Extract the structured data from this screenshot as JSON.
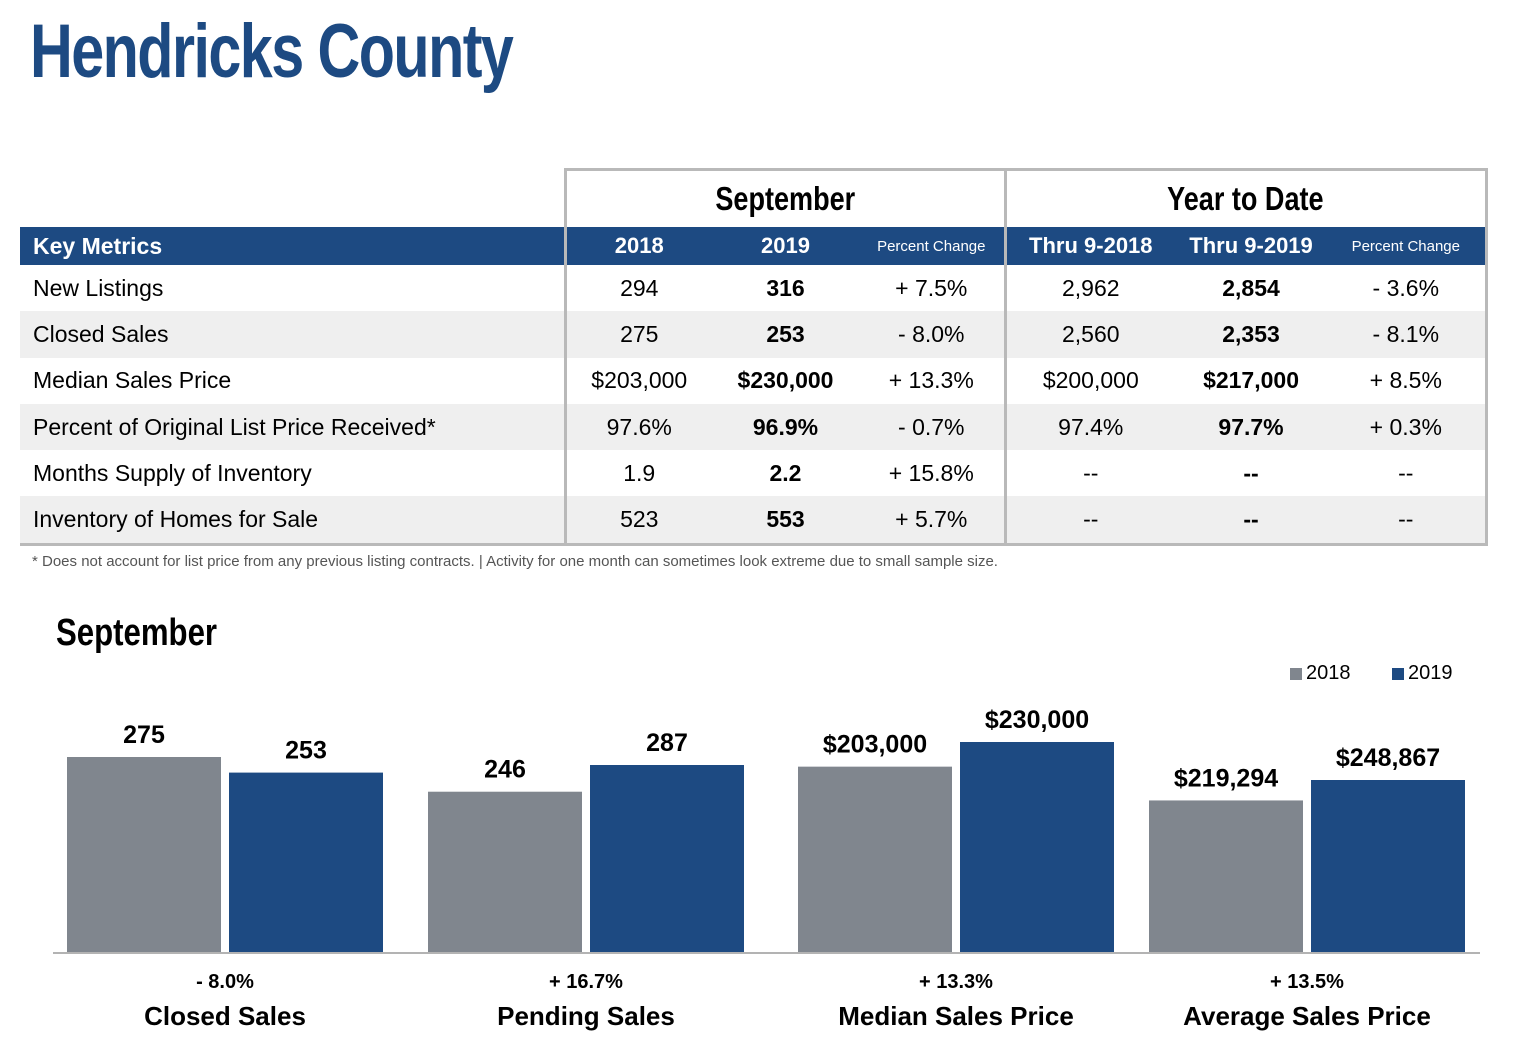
{
  "header": {
    "title": "Hendricks County"
  },
  "table": {
    "group_headers": [
      "September",
      "Year to Date"
    ],
    "columns": [
      "Key Metrics",
      "2018",
      "2019",
      "Percent Change",
      "Thru 9-2018",
      "Thru 9-2019",
      "Percent Change"
    ],
    "rows": [
      [
        "New Listings",
        "294",
        "316",
        "+ 7.5%",
        "2,962",
        "2,854",
        "- 3.6%"
      ],
      [
        "Closed Sales",
        "275",
        "253",
        "- 8.0%",
        "2,560",
        "2,353",
        "- 8.1%"
      ],
      [
        "Median Sales Price",
        "$203,000",
        "$230,000",
        "+ 13.3%",
        "$200,000",
        "$217,000",
        "+ 8.5%"
      ],
      [
        "Percent of Original List Price Received*",
        "97.6%",
        "96.9%",
        "- 0.7%",
        "97.4%",
        "97.7%",
        "+ 0.3%"
      ],
      [
        "Months Supply of Inventory",
        "1.9",
        "2.2",
        "+ 15.8%",
        "--",
        "--",
        "--"
      ],
      [
        "Inventory of Homes for Sale",
        "523",
        "553",
        "+ 5.7%",
        "--",
        "--",
        "--"
      ]
    ],
    "footnote": "* Does not account for list price from any previous listing contracts.  |  Activity for one month can sometimes look extreme due to small sample size."
  },
  "section_title": "September",
  "colors": {
    "brand": "#1d4a82",
    "series_2018": "#80868e",
    "series_2019": "#1d4a82"
  },
  "chart_data": {
    "type": "bar",
    "title": "September",
    "legend": {
      "position": "top-right",
      "entries": [
        "2018",
        "2019"
      ]
    },
    "grid": false,
    "categories": [
      "Closed Sales",
      "Pending Sales",
      "Median Sales Price",
      "Average Sales Price"
    ],
    "series": [
      {
        "name": "2018",
        "values": [
          275,
          246,
          203000,
          219294
        ],
        "labels": [
          "275",
          "246",
          "$203,000",
          "$219,294"
        ]
      },
      {
        "name": "2019",
        "values": [
          253,
          287,
          230000,
          248867
        ],
        "labels": [
          "253",
          "287",
          "$230,000",
          "$248,867"
        ]
      }
    ],
    "percent_change": [
      "- 8.0%",
      "+ 16.7%",
      "+ 13.3%",
      "+ 13.5%"
    ]
  }
}
